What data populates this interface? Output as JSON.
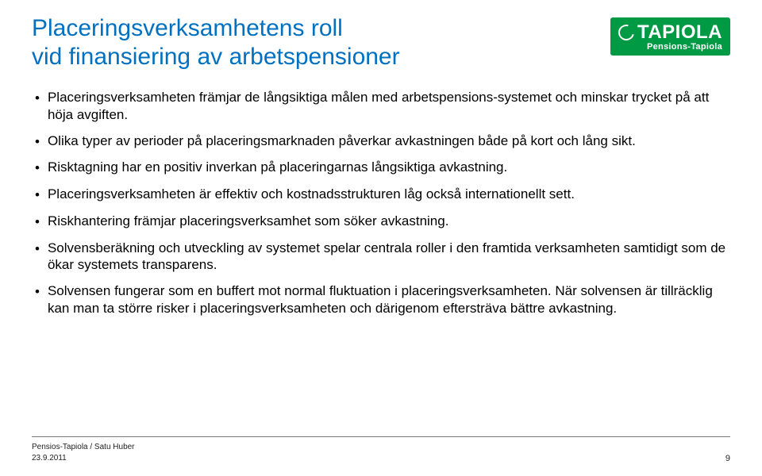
{
  "title": {
    "line1": "Placeringsverksamhetens roll",
    "line2": "vid finansiering av arbetspensioner",
    "color": "#0070c0",
    "fontsize": 30
  },
  "logo": {
    "main": "TAPIOLA",
    "sub": "Pensions-Tapiola",
    "bg_color": "#009a44",
    "text_color": "#ffffff"
  },
  "bullets": [
    "Placeringsverksamheten främjar de långsiktiga målen med arbetspensions-systemet och minskar trycket på att höja avgiften.",
    "Olika typer av perioder på placeringsmarknaden påverkar avkastningen både på kort och lång sikt.",
    "Risktagning har en positiv inverkan på placeringarnas långsiktiga avkastning.",
    "Placeringsverksamheten är effektiv och kostnadsstrukturen låg också internationellt sett.",
    "Riskhantering främjar placeringsverksamhet som söker avkastning.",
    "Solvensberäkning och utveckling av systemet spelar centrala roller i den framtida verksamheten samtidigt som de ökar systemets transparens.",
    "Solvensen fungerar som en buffert mot normal fluktuation i placeringsverksamheten. När solvensen är tillräcklig kan man ta större risker i placeringsverksamheten och därigenom eftersträva bättre avkastning."
  ],
  "body": {
    "color": "#000000",
    "bullet_glyph": "•",
    "fontsize": 17
  },
  "footer": {
    "author": "Pensios-Tapiola / Satu Huber",
    "date": "23.9.2011",
    "page": "9",
    "line_color": "#777777",
    "fontsize": 10
  },
  "background_color": "#ffffff"
}
